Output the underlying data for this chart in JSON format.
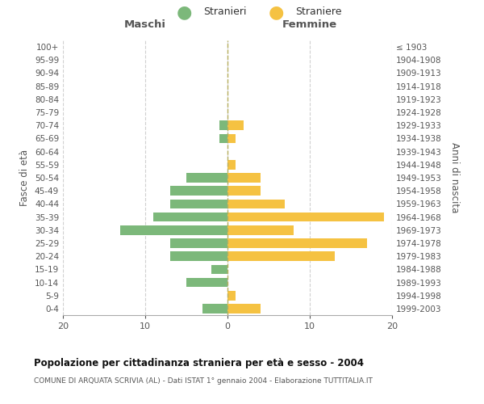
{
  "age_groups": [
    "0-4",
    "5-9",
    "10-14",
    "15-19",
    "20-24",
    "25-29",
    "30-34",
    "35-39",
    "40-44",
    "45-49",
    "50-54",
    "55-59",
    "60-64",
    "65-69",
    "70-74",
    "75-79",
    "80-84",
    "85-89",
    "90-94",
    "95-99",
    "100+"
  ],
  "birth_years": [
    "1999-2003",
    "1994-1998",
    "1989-1993",
    "1984-1988",
    "1979-1983",
    "1974-1978",
    "1969-1973",
    "1964-1968",
    "1959-1963",
    "1954-1958",
    "1949-1953",
    "1944-1948",
    "1939-1943",
    "1934-1938",
    "1929-1933",
    "1924-1928",
    "1919-1923",
    "1914-1918",
    "1909-1913",
    "1904-1908",
    "≤ 1903"
  ],
  "males": [
    3,
    0,
    5,
    2,
    7,
    7,
    13,
    9,
    7,
    7,
    5,
    0,
    0,
    1,
    1,
    0,
    0,
    0,
    0,
    0,
    0
  ],
  "females": [
    4,
    1,
    0,
    0,
    13,
    17,
    8,
    19,
    7,
    4,
    4,
    1,
    0,
    1,
    2,
    0,
    0,
    0,
    0,
    0,
    0
  ],
  "color_male": "#7cb87a",
  "color_female": "#f5c242",
  "title": "Popolazione per cittadinanza straniera per età e sesso - 2004",
  "subtitle": "COMUNE DI ARQUATA SCRIVIA (AL) - Dati ISTAT 1° gennaio 2004 - Elaborazione TUTTITALIA.IT",
  "xlabel_left": "Maschi",
  "xlabel_right": "Femmine",
  "ylabel_left": "Fasce di età",
  "ylabel_right": "Anni di nascita",
  "legend_male": "Stranieri",
  "legend_female": "Straniere",
  "xlim": 20,
  "background_color": "#ffffff",
  "grid_color": "#d0d0d0",
  "centerline_color": "#b8b060"
}
